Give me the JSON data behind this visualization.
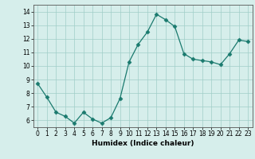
{
  "x": [
    0,
    1,
    2,
    3,
    4,
    5,
    6,
    7,
    8,
    9,
    10,
    11,
    12,
    13,
    14,
    15,
    16,
    17,
    18,
    19,
    20,
    21,
    22,
    23
  ],
  "y": [
    8.7,
    7.7,
    6.6,
    6.3,
    5.8,
    6.6,
    6.1,
    5.8,
    6.2,
    7.6,
    10.3,
    11.6,
    12.5,
    13.8,
    13.4,
    12.9,
    10.9,
    10.5,
    10.4,
    10.3,
    10.1,
    10.9,
    11.9,
    11.8
  ],
  "xlabel": "Humidex (Indice chaleur)",
  "xlim": [
    -0.5,
    23.5
  ],
  "ylim": [
    5.5,
    14.5
  ],
  "yticks": [
    6,
    7,
    8,
    9,
    10,
    11,
    12,
    13,
    14
  ],
  "xticks": [
    0,
    1,
    2,
    3,
    4,
    5,
    6,
    7,
    8,
    9,
    10,
    11,
    12,
    13,
    14,
    15,
    16,
    17,
    18,
    19,
    20,
    21,
    22,
    23
  ],
  "line_color": "#1a7a6e",
  "marker": "D",
  "marker_size": 2.5,
  "bg_color": "#d6eeeb",
  "grid_color": "#a0cdc8",
  "label_fontsize": 6.5,
  "tick_fontsize": 5.5
}
